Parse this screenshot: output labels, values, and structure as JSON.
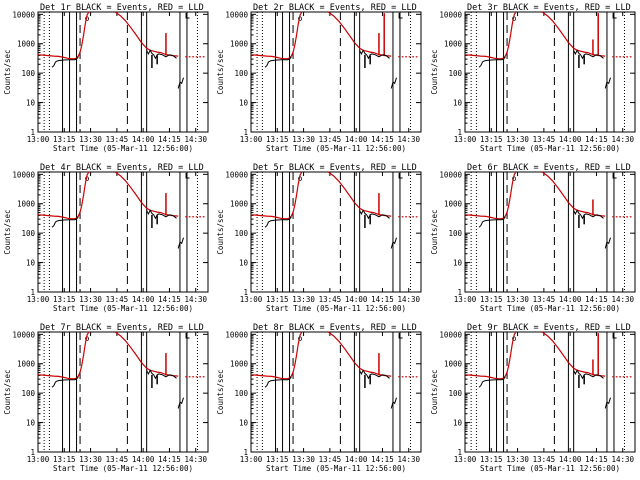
{
  "colors": {
    "events": "#000000",
    "lld": "#cc0000",
    "background": "#ffffff"
  },
  "common": {
    "xtick_labels": [
      "13:00",
      "13:15",
      "13:30",
      "13:45",
      "14:00",
      "14:15",
      "14:30"
    ],
    "ytick_labels": [
      "1",
      "10",
      "100",
      "1000",
      "10000"
    ],
    "ylabel": "Counts/sec",
    "xlabel": "Start Time (05-Mar-11 12:56:00)"
  },
  "chart_data": [
    {
      "type": "line",
      "title": "Det 1r BLACK = Events, RED = LLD",
      "xlabel": "Start Time (05-Mar-11 12:56:00)",
      "ylabel": "Counts/sec",
      "xlim": [
        "13:00",
        "14:37"
      ],
      "ylim": [
        1,
        12000
      ],
      "yscale": "log",
      "grid": false,
      "series": [
        {
          "name": "Events",
          "color": "black"
        },
        {
          "name": "LLD",
          "color": "red"
        }
      ]
    },
    {
      "type": "line",
      "title": "Det 2r BLACK = Events, RED = LLD",
      "xlabel": "Start Time (05-Mar-11 12:56:00)",
      "ylabel": "Counts/sec",
      "xlim": [
        "13:00",
        "14:37"
      ],
      "ylim": [
        1,
        12000
      ],
      "yscale": "log",
      "grid": false,
      "series": [
        {
          "name": "Events",
          "color": "black"
        },
        {
          "name": "LLD",
          "color": "red"
        }
      ]
    },
    {
      "type": "line",
      "title": "Det 3r BLACK = Events, RED = LLD",
      "xlabel": "Start Time (05-Mar-11 12:56:00)",
      "ylabel": "Counts/sec",
      "xlim": [
        "13:00",
        "14:37"
      ],
      "ylim": [
        1,
        12000
      ],
      "yscale": "log",
      "grid": false,
      "series": [
        {
          "name": "Events",
          "color": "black"
        },
        {
          "name": "LLD",
          "color": "red"
        }
      ]
    },
    {
      "type": "line",
      "title": "Det 4r BLACK = Events, RED = LLD",
      "xlabel": "Start Time (05-Mar-11 12:56:00)",
      "ylabel": "Counts/sec",
      "xlim": [
        "13:00",
        "14:37"
      ],
      "ylim": [
        1,
        12000
      ],
      "yscale": "log",
      "grid": false,
      "series": [
        {
          "name": "Events",
          "color": "black"
        },
        {
          "name": "LLD",
          "color": "red"
        }
      ]
    },
    {
      "type": "line",
      "title": "Det 5r BLACK = Events, RED = LLD",
      "xlabel": "Start Time (05-Mar-11 12:56:00)",
      "ylabel": "Counts/sec",
      "xlim": [
        "13:00",
        "14:37"
      ],
      "ylim": [
        1,
        12000
      ],
      "yscale": "log",
      "grid": false,
      "series": [
        {
          "name": "Events",
          "color": "black"
        },
        {
          "name": "LLD",
          "color": "red"
        }
      ]
    },
    {
      "type": "line",
      "title": "Det 6r BLACK = Events, RED = LLD",
      "xlabel": "Start Time (05-Mar-11 12:56:00)",
      "ylabel": "Counts/sec",
      "xlim": [
        "13:00",
        "14:37"
      ],
      "ylim": [
        1,
        12000
      ],
      "yscale": "log",
      "grid": false,
      "series": [
        {
          "name": "Events",
          "color": "black"
        },
        {
          "name": "LLD",
          "color": "red"
        }
      ]
    },
    {
      "type": "line",
      "title": "Det 7r BLACK = Events, RED = LLD",
      "xlabel": "Start Time (05-Mar-11 12:56:00)",
      "ylabel": "Counts/sec",
      "xlim": [
        "13:00",
        "14:37"
      ],
      "ylim": [
        1,
        12000
      ],
      "yscale": "log",
      "grid": false,
      "series": [
        {
          "name": "Events",
          "color": "black"
        },
        {
          "name": "LLD",
          "color": "red"
        }
      ]
    },
    {
      "type": "line",
      "title": "Det 8r BLACK = Events, RED = LLD",
      "xlabel": "Start Time (05-Mar-11 12:56:00)",
      "ylabel": "Counts/sec",
      "xlim": [
        "13:00",
        "14:37"
      ],
      "ylim": [
        1,
        12000
      ],
      "yscale": "log",
      "grid": false,
      "series": [
        {
          "name": "Events",
          "color": "black"
        },
        {
          "name": "LLD",
          "color": "red"
        }
      ]
    },
    {
      "type": "line",
      "title": "Det 9r BLACK = Events, RED = LLD",
      "xlabel": "Start Time (05-Mar-11 12:56:00)",
      "ylabel": "Counts/sec",
      "xlim": [
        "13:00",
        "14:37"
      ],
      "ylim": [
        1,
        12000
      ],
      "yscale": "log",
      "grid": false,
      "series": [
        {
          "name": "Events",
          "color": "black"
        },
        {
          "name": "LLD",
          "color": "red"
        }
      ]
    }
  ]
}
